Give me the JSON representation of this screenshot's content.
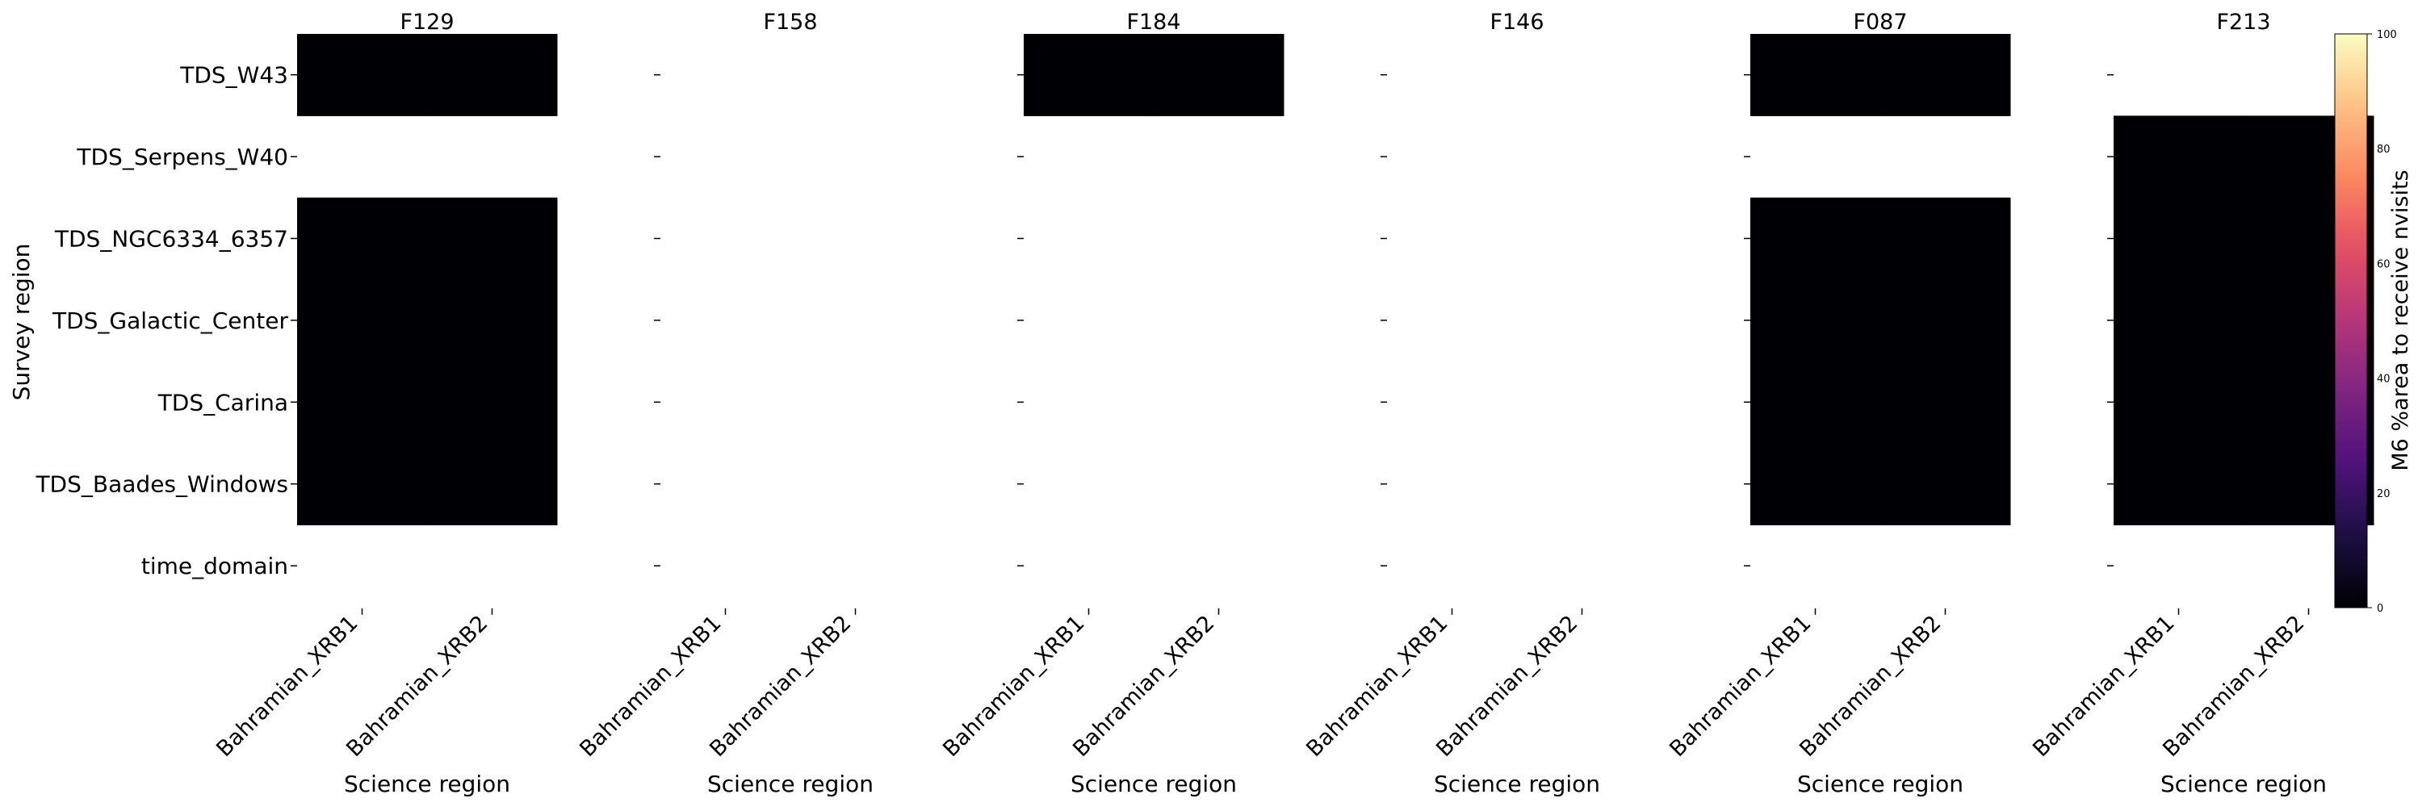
{
  "chart_data": {
    "type": "heatmap",
    "ylabel": "Survey region",
    "xlabel": "Science region",
    "y_categories": [
      "TDS_W43",
      "TDS_Serpens_W40",
      "TDS_NGC6334_6357",
      "TDS_Galactic_Center",
      "TDS_Carina",
      "TDS_Baades_Windows",
      "time_domain"
    ],
    "x_categories": [
      "Bahramian_XRB1",
      "Bahramian_XRB2"
    ],
    "colorbar": {
      "label": "M6 %area to receive nvisits",
      "min": 0,
      "max": 100,
      "ticks": [
        0,
        20,
        40,
        60,
        80,
        100
      ],
      "colormap": "magma"
    },
    "panels": [
      {
        "title": "F129",
        "values": [
          [
            0,
            0
          ],
          [
            null,
            null
          ],
          [
            0,
            0
          ],
          [
            0,
            0
          ],
          [
            0,
            0
          ],
          [
            0,
            0
          ],
          [
            null,
            null
          ]
        ]
      },
      {
        "title": "F158",
        "values": [
          [
            null,
            null
          ],
          [
            null,
            null
          ],
          [
            null,
            null
          ],
          [
            null,
            null
          ],
          [
            null,
            null
          ],
          [
            null,
            null
          ],
          [
            null,
            null
          ]
        ]
      },
      {
        "title": "F184",
        "values": [
          [
            0,
            0
          ],
          [
            null,
            null
          ],
          [
            null,
            null
          ],
          [
            null,
            null
          ],
          [
            null,
            null
          ],
          [
            null,
            null
          ],
          [
            null,
            null
          ]
        ]
      },
      {
        "title": "F146",
        "values": [
          [
            null,
            null
          ],
          [
            null,
            null
          ],
          [
            null,
            null
          ],
          [
            null,
            null
          ],
          [
            null,
            null
          ],
          [
            null,
            null
          ],
          [
            null,
            null
          ]
        ]
      },
      {
        "title": "F087",
        "values": [
          [
            0,
            0
          ],
          [
            null,
            null
          ],
          [
            0,
            0
          ],
          [
            0,
            0
          ],
          [
            0,
            0
          ],
          [
            0,
            0
          ],
          [
            null,
            null
          ]
        ]
      },
      {
        "title": "F213",
        "values": [
          [
            null,
            null
          ],
          [
            0,
            0
          ],
          [
            0,
            0
          ],
          [
            0,
            0
          ],
          [
            0,
            0
          ],
          [
            0,
            0
          ],
          [
            null,
            null
          ]
        ]
      }
    ]
  }
}
